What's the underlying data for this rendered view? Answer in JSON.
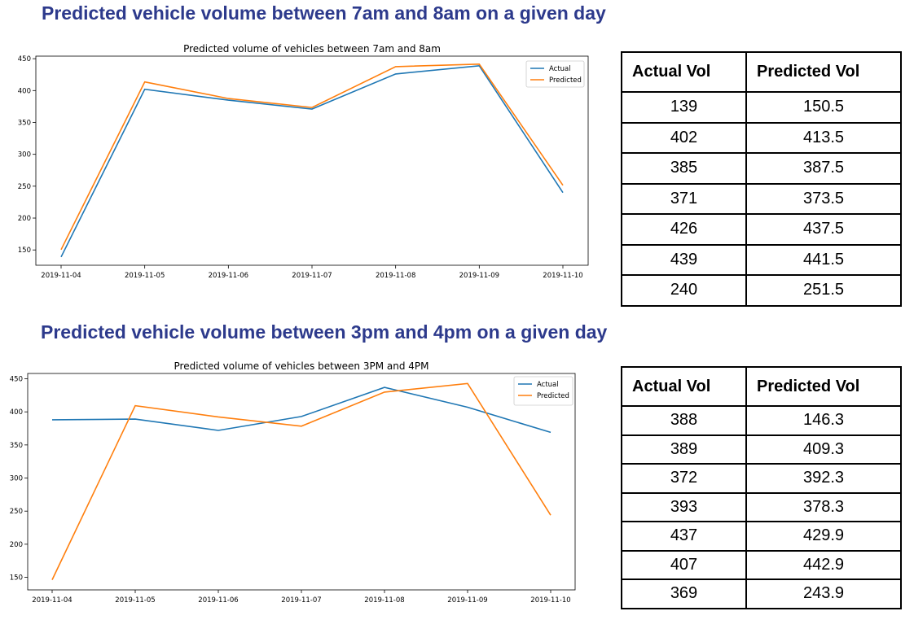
{
  "colors": {
    "heading": "#2d3a8c",
    "actual": "#1f77b4",
    "predicted": "#ff7f0e"
  },
  "sections": [
    {
      "heading": "Predicted vehicle volume between 7am and 8am on a given day"
    },
    {
      "heading": "Predicted vehicle volume between 3pm and 4pm on a given day"
    }
  ],
  "chart_data": [
    {
      "type": "line",
      "title": "Predicted volume of vehicles between 7am and 8am",
      "xlabel": "",
      "ylabel": "",
      "x": [
        "2019-11-04",
        "2019-11-05",
        "2019-11-06",
        "2019-11-07",
        "2019-11-08",
        "2019-11-09",
        "2019-11-10"
      ],
      "yticks": [
        150,
        200,
        250,
        300,
        350,
        400,
        450
      ],
      "ylim": [
        126,
        454
      ],
      "grid": false,
      "legend": "top-right",
      "series": [
        {
          "name": "Actual",
          "values": [
            139,
            402,
            385,
            371,
            426,
            439,
            240
          ]
        },
        {
          "name": "Predicted",
          "values": [
            150.5,
            413.5,
            387.5,
            373.5,
            437.5,
            441.5,
            251.5
          ]
        }
      ]
    },
    {
      "type": "line",
      "title": "Predicted volume of vehicles between 3PM and 4PM",
      "xlabel": "",
      "ylabel": "",
      "x": [
        "2019-11-04",
        "2019-11-05",
        "2019-11-06",
        "2019-11-07",
        "2019-11-08",
        "2019-11-09",
        "2019-11-10"
      ],
      "yticks": [
        150,
        200,
        250,
        300,
        350,
        400,
        450
      ],
      "ylim": [
        131,
        458
      ],
      "grid": false,
      "legend": "top-right",
      "series": [
        {
          "name": "Actual",
          "values": [
            388,
            389,
            372,
            393,
            437,
            407,
            369
          ]
        },
        {
          "name": "Predicted",
          "values": [
            146.3,
            409.3,
            392.3,
            378.3,
            429.9,
            442.9,
            243.9
          ]
        }
      ]
    }
  ],
  "tables": [
    {
      "headers": [
        "Actual Vol",
        "Predicted Vol"
      ],
      "rows": [
        [
          "139",
          "150.5"
        ],
        [
          "402",
          "413.5"
        ],
        [
          "385",
          "387.5"
        ],
        [
          "371",
          "373.5"
        ],
        [
          "426",
          "437.5"
        ],
        [
          "439",
          "441.5"
        ],
        [
          "240",
          "251.5"
        ]
      ]
    },
    {
      "headers": [
        "Actual Vol",
        "Predicted Vol"
      ],
      "rows": [
        [
          "388",
          "146.3"
        ],
        [
          "389",
          "409.3"
        ],
        [
          "372",
          "392.3"
        ],
        [
          "393",
          "378.3"
        ],
        [
          "437",
          "429.9"
        ],
        [
          "407",
          "442.9"
        ],
        [
          "369",
          "243.9"
        ]
      ]
    }
  ]
}
